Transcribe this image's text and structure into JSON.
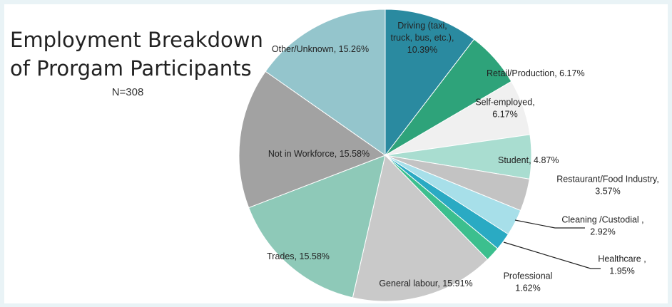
{
  "chart_data": {
    "type": "pie",
    "title": [
      "Employment Breakdown",
      "of Prorgam Participants"
    ],
    "subtitle": "N=308",
    "slices": [
      {
        "label": "Driving (taxi, truck, bus, etc.)",
        "value": 10.39,
        "display": [
          "Driving (taxi,",
          "truck, bus, etc.),",
          "10.39%"
        ],
        "color": "#2a8aa0"
      },
      {
        "label": "Retail/Production",
        "value": 6.17,
        "display": [
          "Retail/Production, 6.17%"
        ],
        "color": "#2ea37a"
      },
      {
        "label": "Self-employed",
        "value": 6.17,
        "display": [
          "Self-employed,",
          "6.17%"
        ],
        "color": "#f0f0f0"
      },
      {
        "label": "Student",
        "value": 4.87,
        "display": [
          "Student, 4.87%"
        ],
        "color": "#a9ddd0"
      },
      {
        "label": "Restaurant/Food Industry",
        "value": 3.57,
        "display": [
          "Restaurant/Food Industry,",
          "3.57%"
        ],
        "color": "#c3c3c3"
      },
      {
        "label": "Cleaning /Custodial",
        "value": 2.92,
        "display": [
          "Cleaning /Custodial ,",
          "2.92%"
        ],
        "color": "#a7dfe9"
      },
      {
        "label": "Healthcare",
        "value": 1.95,
        "display": [
          "Healthcare ,",
          "1.95%"
        ],
        "color": "#2aaac3"
      },
      {
        "label": "Professional",
        "value": 1.62,
        "display": [
          "Professional",
          "1.62%"
        ],
        "color": "#3cbf8e"
      },
      {
        "label": "General labour",
        "value": 15.91,
        "display": [
          "General labour, 15.91%"
        ],
        "color": "#c9c9c9"
      },
      {
        "label": "Trades",
        "value": 15.58,
        "display": [
          "Trades, 15.58%"
        ],
        "color": "#8ec9b8"
      },
      {
        "label": "Not in Workforce",
        "value": 15.58,
        "display": [
          "Not in Workforce, 15.58%"
        ],
        "color": "#a2a2a2"
      },
      {
        "label": "Other/Unknown",
        "value": 15.26,
        "display": [
          "Other/Unknown, 15.26%"
        ],
        "color": "#94c5cc"
      }
    ],
    "start_angle_deg": 0,
    "direction": "clockwise",
    "leader_lines": [
      "Cleaning /Custodial",
      "Healthcare"
    ]
  }
}
